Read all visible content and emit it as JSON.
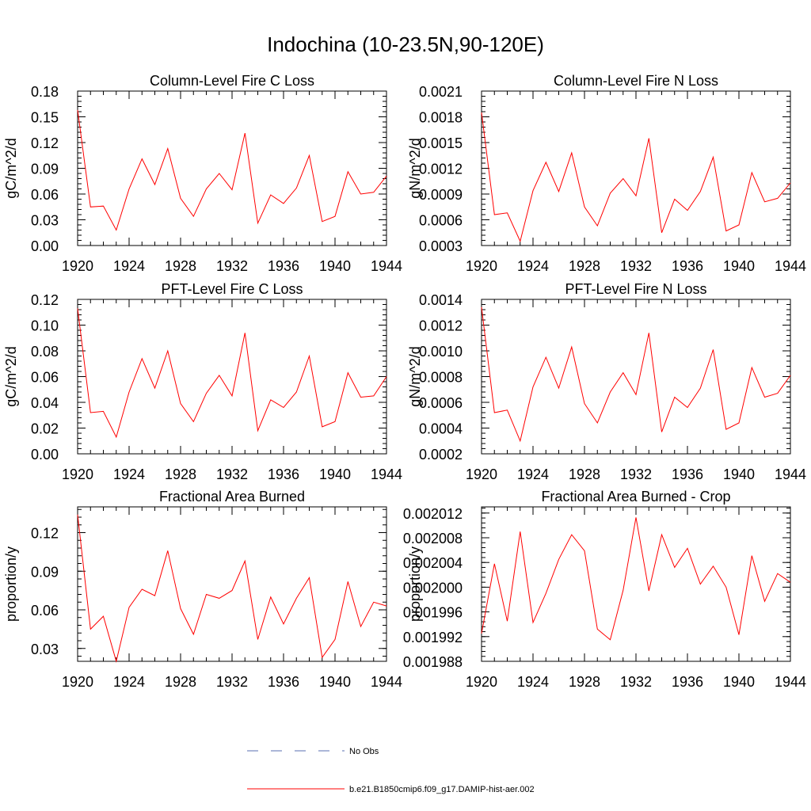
{
  "figure": {
    "title": "Indochina (10-23.5N,90-120E)",
    "line_color": "#ff0000",
    "obs_color": "#5a6fb0"
  },
  "legend": {
    "obs_label": "No Obs",
    "model_label": "b.e21.B1850cmip6.f09_g17.DAMIP-hist-aer.002"
  },
  "chart_data": [
    {
      "type": "line",
      "title": "Column-Level Fire C Loss",
      "ylabel": "gC/m^2/d",
      "xlim": [
        1920,
        1944
      ],
      "ylim": [
        0.0,
        0.18
      ],
      "yticks": [
        0.0,
        0.03,
        0.06,
        0.09,
        0.12,
        0.15,
        0.18
      ],
      "ytick_labels": [
        "0.00",
        "0.03",
        "0.06",
        "0.09",
        "0.12",
        "0.15",
        "0.18"
      ],
      "xticks": [
        1920,
        1924,
        1928,
        1932,
        1936,
        1940,
        1944
      ],
      "xtick_labels": [
        "1920",
        "1924",
        "1928",
        "1932",
        "1936",
        "1940",
        "1944"
      ],
      "series": [
        {
          "x": [
            1920,
            1921,
            1922,
            1923,
            1924,
            1925,
            1926,
            1927,
            1928,
            1929,
            1930,
            1931,
            1932,
            1933,
            1934,
            1935,
            1936,
            1937,
            1938,
            1939,
            1940,
            1941,
            1942,
            1943,
            1944
          ],
          "values": [
            0.158,
            0.045,
            0.046,
            0.018,
            0.066,
            0.101,
            0.071,
            0.113,
            0.055,
            0.034,
            0.066,
            0.084,
            0.065,
            0.131,
            0.026,
            0.059,
            0.049,
            0.067,
            0.105,
            0.028,
            0.034,
            0.086,
            0.06,
            0.062,
            0.081
          ]
        }
      ]
    },
    {
      "type": "line",
      "title": "Column-Level Fire N Loss",
      "ylabel": "gN/m^2/d",
      "xlim": [
        1920,
        1944
      ],
      "ylim": [
        0.0003,
        0.0021
      ],
      "yticks": [
        0.0003,
        0.0006,
        0.0009,
        0.0012,
        0.0015,
        0.0018,
        0.0021
      ],
      "ytick_labels": [
        "0.0003",
        "0.0006",
        "0.0009",
        "0.0012",
        "0.0015",
        "0.0018",
        "0.0021"
      ],
      "xticks": [
        1920,
        1924,
        1928,
        1932,
        1936,
        1940,
        1944
      ],
      "xtick_labels": [
        "1920",
        "1924",
        "1928",
        "1932",
        "1936",
        "1940",
        "1944"
      ],
      "series": [
        {
          "x": [
            1920,
            1921,
            1922,
            1923,
            1924,
            1925,
            1926,
            1927,
            1928,
            1929,
            1930,
            1931,
            1932,
            1933,
            1934,
            1935,
            1936,
            1937,
            1938,
            1939,
            1940,
            1941,
            1942,
            1943,
            1944
          ],
          "values": [
            0.00185,
            0.00066,
            0.00068,
            0.00035,
            0.00094,
            0.00127,
            0.00093,
            0.00138,
            0.00075,
            0.00053,
            0.00091,
            0.00108,
            0.00088,
            0.00155,
            0.00045,
            0.00084,
            0.00071,
            0.00093,
            0.00133,
            0.00047,
            0.00054,
            0.00115,
            0.00081,
            0.00085,
            0.00103
          ]
        }
      ]
    },
    {
      "type": "line",
      "title": "PFT-Level Fire C Loss",
      "ylabel": "gC/m^2/d",
      "xlim": [
        1920,
        1944
      ],
      "ylim": [
        0.0,
        0.12
      ],
      "yticks": [
        0.0,
        0.02,
        0.04,
        0.06,
        0.08,
        0.1,
        0.12
      ],
      "ytick_labels": [
        "0.00",
        "0.02",
        "0.04",
        "0.06",
        "0.08",
        "0.10",
        "0.12"
      ],
      "xticks": [
        1920,
        1924,
        1928,
        1932,
        1936,
        1940,
        1944
      ],
      "xtick_labels": [
        "1920",
        "1924",
        "1928",
        "1932",
        "1936",
        "1940",
        "1944"
      ],
      "series": [
        {
          "x": [
            1920,
            1921,
            1922,
            1923,
            1924,
            1925,
            1926,
            1927,
            1928,
            1929,
            1930,
            1931,
            1932,
            1933,
            1934,
            1935,
            1936,
            1937,
            1938,
            1939,
            1940,
            1941,
            1942,
            1943,
            1944
          ],
          "values": [
            0.113,
            0.032,
            0.033,
            0.013,
            0.048,
            0.074,
            0.051,
            0.08,
            0.039,
            0.025,
            0.047,
            0.061,
            0.045,
            0.094,
            0.018,
            0.042,
            0.036,
            0.048,
            0.076,
            0.021,
            0.025,
            0.063,
            0.044,
            0.045,
            0.06
          ]
        }
      ]
    },
    {
      "type": "line",
      "title": "PFT-Level Fire N Loss",
      "ylabel": "gN/m^2/d",
      "xlim": [
        1920,
        1944
      ],
      "ylim": [
        0.0002,
        0.0014
      ],
      "yticks": [
        0.0002,
        0.0004,
        0.0006,
        0.0008,
        0.001,
        0.0012,
        0.0014
      ],
      "ytick_labels": [
        "0.0002",
        "0.0004",
        "0.0006",
        "0.0008",
        "0.0010",
        "0.0012",
        "0.0014"
      ],
      "xticks": [
        1920,
        1924,
        1928,
        1932,
        1936,
        1940,
        1944
      ],
      "xtick_labels": [
        "1920",
        "1924",
        "1928",
        "1932",
        "1936",
        "1940",
        "1944"
      ],
      "series": [
        {
          "x": [
            1920,
            1921,
            1922,
            1923,
            1924,
            1925,
            1926,
            1927,
            1928,
            1929,
            1930,
            1931,
            1932,
            1933,
            1934,
            1935,
            1936,
            1937,
            1938,
            1939,
            1940,
            1941,
            1942,
            1943,
            1944
          ],
          "values": [
            0.00134,
            0.00052,
            0.00054,
            0.0003,
            0.00072,
            0.00095,
            0.00071,
            0.00103,
            0.00059,
            0.00044,
            0.00068,
            0.00083,
            0.00066,
            0.00114,
            0.00037,
            0.00064,
            0.00056,
            0.00071,
            0.00101,
            0.00039,
            0.00044,
            0.00087,
            0.00064,
            0.00067,
            0.00081
          ]
        }
      ]
    },
    {
      "type": "line",
      "title": "Fractional Area Burned",
      "ylabel": "proportion/y",
      "xlim": [
        1920,
        1944
      ],
      "ylim": [
        0.02,
        0.14
      ],
      "yticks": [
        0.03,
        0.06,
        0.09,
        0.12
      ],
      "ytick_labels": [
        "0.03",
        "0.06",
        "0.09",
        "0.12"
      ],
      "xticks": [
        1920,
        1924,
        1928,
        1932,
        1936,
        1940,
        1944
      ],
      "xtick_labels": [
        "1920",
        "1924",
        "1928",
        "1932",
        "1936",
        "1940",
        "1944"
      ],
      "series": [
        {
          "x": [
            1920,
            1921,
            1922,
            1923,
            1924,
            1925,
            1926,
            1927,
            1928,
            1929,
            1930,
            1931,
            1932,
            1933,
            1934,
            1935,
            1936,
            1937,
            1938,
            1939,
            1940,
            1941,
            1942,
            1943,
            1944
          ],
          "values": [
            0.134,
            0.045,
            0.055,
            0.02,
            0.062,
            0.076,
            0.071,
            0.106,
            0.061,
            0.041,
            0.072,
            0.069,
            0.075,
            0.098,
            0.037,
            0.07,
            0.049,
            0.069,
            0.085,
            0.023,
            0.037,
            0.082,
            0.047,
            0.066,
            0.063
          ]
        }
      ]
    },
    {
      "type": "line",
      "title": "Fractional Area Burned - Crop",
      "ylabel": "proportion/y",
      "xlim": [
        1920,
        1944
      ],
      "ylim": [
        0.001988,
        0.002013
      ],
      "yticks": [
        0.001988,
        0.001992,
        0.001996,
        0.002,
        0.002004,
        0.002008,
        0.002012
      ],
      "ytick_labels": [
        "0.001988",
        "0.001992",
        "0.001996",
        "0.002000",
        "0.002004",
        "0.002008",
        "0.002012"
      ],
      "xticks": [
        1920,
        1924,
        1928,
        1932,
        1936,
        1940,
        1944
      ],
      "xtick_labels": [
        "1920",
        "1924",
        "1928",
        "1932",
        "1936",
        "1940",
        "1944"
      ],
      "series": [
        {
          "x": [
            1920,
            1921,
            1922,
            1923,
            1924,
            1925,
            1926,
            1927,
            1928,
            1929,
            1930,
            1931,
            1932,
            1933,
            1934,
            1935,
            1936,
            1937,
            1938,
            1939,
            1940,
            1941,
            1942,
            1943,
            1944
          ],
          "values": [
            0.0019925,
            0.0020038,
            0.0019945,
            0.002009,
            0.0019943,
            0.001999,
            0.0020045,
            0.0020085,
            0.0020059,
            0.0019932,
            0.0019915,
            0.0019995,
            0.0020113,
            0.0019994,
            0.0020085,
            0.0020032,
            0.0020063,
            0.0020005,
            0.0020034,
            0.002,
            0.0019923,
            0.0020051,
            0.0019977,
            0.0020022,
            0.0020008
          ]
        }
      ]
    }
  ]
}
